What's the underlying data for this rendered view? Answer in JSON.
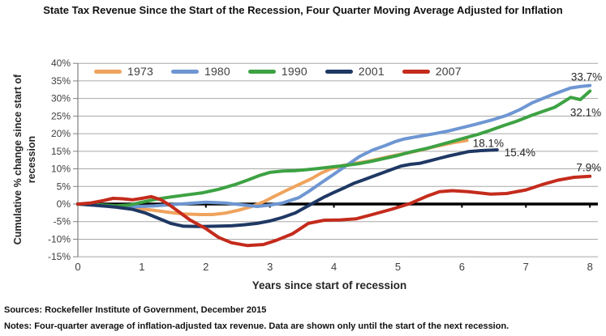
{
  "title": "State Tax Revenue Since the Start of the Recession, Four Quarter Moving Average Adjusted for Inflation",
  "chart_data": {
    "type": "line",
    "title": "State Tax Revenue Since the Start of the Recession, Four Quarter Moving Average Adjusted for Inflation",
    "xlabel": "Years since start of recession",
    "ylabel": "Cumulative % change since start of recession",
    "ylabel_lines": [
      "Cumulative % change since start of",
      "recession"
    ],
    "xlim": [
      0,
      8
    ],
    "ylim": [
      -15,
      40
    ],
    "x_ticks": [
      "0",
      "1",
      "2",
      "3",
      "4",
      "5",
      "6",
      "7",
      "8"
    ],
    "y_ticks": [
      "40%",
      "35%",
      "30%",
      "25%",
      "20%",
      "15%",
      "10%",
      "5%",
      "0%",
      "-5%",
      "-10%",
      "-15%"
    ],
    "y_tick_values": [
      40,
      35,
      30,
      25,
      20,
      15,
      10,
      5,
      0,
      -5,
      -10,
      -15
    ],
    "grid": true,
    "legend_position": "top",
    "zero_line": true,
    "series": [
      {
        "name": "1973",
        "color": "#EFA35D",
        "end_label": "18.1%",
        "points": [
          [
            0,
            0
          ],
          [
            0.3,
            -0.2
          ],
          [
            0.6,
            -0.7
          ],
          [
            0.9,
            -1.2
          ],
          [
            1.15,
            -1.7
          ],
          [
            1.4,
            -2.3
          ],
          [
            1.65,
            -2.8
          ],
          [
            1.9,
            -3.0
          ],
          [
            2.1,
            -3.0
          ],
          [
            2.3,
            -2.6
          ],
          [
            2.5,
            -1.8
          ],
          [
            2.7,
            -0.8
          ],
          [
            2.9,
            0.6
          ],
          [
            3.05,
            2.0
          ],
          [
            3.25,
            3.8
          ],
          [
            3.45,
            5.5
          ],
          [
            3.65,
            7.2
          ],
          [
            3.8,
            8.8
          ],
          [
            3.95,
            10.0
          ],
          [
            4.15,
            11.0
          ],
          [
            4.35,
            11.6
          ],
          [
            4.55,
            12.2
          ],
          [
            4.75,
            13.0
          ],
          [
            4.95,
            13.8
          ],
          [
            5.15,
            14.5
          ],
          [
            5.35,
            15.3
          ],
          [
            5.55,
            16.2
          ],
          [
            5.7,
            16.8
          ],
          [
            5.85,
            17.4
          ],
          [
            6.08,
            18.1
          ]
        ]
      },
      {
        "name": "1980",
        "color": "#6E96D2",
        "end_label": "33.7%",
        "points": [
          [
            0,
            0
          ],
          [
            0.4,
            -0.5
          ],
          [
            0.8,
            -0.8
          ],
          [
            1.2,
            -0.5
          ],
          [
            1.6,
            0.0
          ],
          [
            2.0,
            0.5
          ],
          [
            2.3,
            0.3
          ],
          [
            2.6,
            -0.3
          ],
          [
            2.8,
            -0.7
          ],
          [
            3.0,
            -0.3
          ],
          [
            3.2,
            0.3
          ],
          [
            3.45,
            1.8
          ],
          [
            3.6,
            3.5
          ],
          [
            3.8,
            6.0
          ],
          [
            4.0,
            8.5
          ],
          [
            4.2,
            11.0
          ],
          [
            4.4,
            13.5
          ],
          [
            4.6,
            15.3
          ],
          [
            4.8,
            16.6
          ],
          [
            4.95,
            17.7
          ],
          [
            5.1,
            18.5
          ],
          [
            5.35,
            19.3
          ],
          [
            5.6,
            20.1
          ],
          [
            5.8,
            20.8
          ],
          [
            6.0,
            21.7
          ],
          [
            6.2,
            22.6
          ],
          [
            6.45,
            23.8
          ],
          [
            6.7,
            25.2
          ],
          [
            6.9,
            26.8
          ],
          [
            7.1,
            28.8
          ],
          [
            7.4,
            31.0
          ],
          [
            7.7,
            33.0
          ],
          [
            7.85,
            33.4
          ],
          [
            8.0,
            33.7
          ]
        ]
      },
      {
        "name": "1990",
        "color": "#3DA243",
        "end_label": "32.1%",
        "points": [
          [
            0,
            0
          ],
          [
            0.3,
            -0.2
          ],
          [
            0.6,
            -0.5
          ],
          [
            0.8,
            -0.3
          ],
          [
            1.0,
            0.5
          ],
          [
            1.2,
            1.3
          ],
          [
            1.45,
            2.0
          ],
          [
            1.7,
            2.6
          ],
          [
            1.95,
            3.2
          ],
          [
            2.2,
            4.2
          ],
          [
            2.45,
            5.5
          ],
          [
            2.65,
            6.8
          ],
          [
            2.85,
            8.2
          ],
          [
            3.0,
            9.0
          ],
          [
            3.2,
            9.4
          ],
          [
            3.4,
            9.5
          ],
          [
            3.6,
            9.8
          ],
          [
            3.8,
            10.2
          ],
          [
            4.0,
            10.6
          ],
          [
            4.2,
            11.0
          ],
          [
            4.4,
            11.5
          ],
          [
            4.6,
            12.2
          ],
          [
            4.8,
            13.0
          ],
          [
            5.0,
            13.8
          ],
          [
            5.2,
            14.8
          ],
          [
            5.45,
            15.8
          ],
          [
            5.65,
            16.8
          ],
          [
            5.85,
            17.8
          ],
          [
            6.05,
            18.8
          ],
          [
            6.25,
            19.8
          ],
          [
            6.45,
            21.0
          ],
          [
            6.65,
            22.3
          ],
          [
            6.85,
            23.5
          ],
          [
            7.1,
            25.3
          ],
          [
            7.45,
            27.5
          ],
          [
            7.7,
            30.3
          ],
          [
            7.85,
            29.7
          ],
          [
            8.0,
            32.1
          ]
        ]
      },
      {
        "name": "2001",
        "color": "#1F3864",
        "end_label": "15.4%",
        "points": [
          [
            0,
            0
          ],
          [
            0.3,
            -0.4
          ],
          [
            0.6,
            -0.9
          ],
          [
            0.85,
            -1.5
          ],
          [
            1.05,
            -2.5
          ],
          [
            1.25,
            -4.0
          ],
          [
            1.45,
            -5.5
          ],
          [
            1.65,
            -6.3
          ],
          [
            1.9,
            -6.4
          ],
          [
            2.15,
            -6.3
          ],
          [
            2.4,
            -6.2
          ],
          [
            2.6,
            -5.9
          ],
          [
            2.8,
            -5.5
          ],
          [
            3.0,
            -4.8
          ],
          [
            3.2,
            -3.8
          ],
          [
            3.4,
            -2.5
          ],
          [
            3.55,
            -1.0
          ],
          [
            3.7,
            0.5
          ],
          [
            3.85,
            2.0
          ],
          [
            4.0,
            3.3
          ],
          [
            4.15,
            4.5
          ],
          [
            4.3,
            5.8
          ],
          [
            4.45,
            6.8
          ],
          [
            4.6,
            7.8
          ],
          [
            4.75,
            8.8
          ],
          [
            4.9,
            9.8
          ],
          [
            5.05,
            10.8
          ],
          [
            5.2,
            11.3
          ],
          [
            5.35,
            11.6
          ],
          [
            5.5,
            12.3
          ],
          [
            5.65,
            13.0
          ],
          [
            5.8,
            13.7
          ],
          [
            5.95,
            14.3
          ],
          [
            6.1,
            14.9
          ],
          [
            6.3,
            15.2
          ],
          [
            6.55,
            15.4
          ]
        ]
      },
      {
        "name": "2007",
        "color": "#C42B1C",
        "end_label": "7.9%",
        "points": [
          [
            0,
            0
          ],
          [
            0.2,
            0.3
          ],
          [
            0.4,
            1.0
          ],
          [
            0.55,
            1.6
          ],
          [
            0.7,
            1.5
          ],
          [
            0.85,
            1.2
          ],
          [
            1.0,
            1.6
          ],
          [
            1.15,
            2.1
          ],
          [
            1.3,
            1.2
          ],
          [
            1.45,
            -0.5
          ],
          [
            1.6,
            -2.5
          ],
          [
            1.75,
            -4.5
          ],
          [
            2.0,
            -7.0
          ],
          [
            2.2,
            -9.5
          ],
          [
            2.4,
            -11.0
          ],
          [
            2.65,
            -11.8
          ],
          [
            2.9,
            -11.5
          ],
          [
            3.1,
            -10.3
          ],
          [
            3.35,
            -8.5
          ],
          [
            3.6,
            -5.5
          ],
          [
            3.85,
            -4.6
          ],
          [
            4.1,
            -4.5
          ],
          [
            4.35,
            -4.2
          ],
          [
            4.6,
            -3.0
          ],
          [
            4.9,
            -1.5
          ],
          [
            5.2,
            0.2
          ],
          [
            5.45,
            2.2
          ],
          [
            5.65,
            3.5
          ],
          [
            5.85,
            3.8
          ],
          [
            6.1,
            3.5
          ],
          [
            6.45,
            2.8
          ],
          [
            6.7,
            3.0
          ],
          [
            7.0,
            4.0
          ],
          [
            7.25,
            5.5
          ],
          [
            7.5,
            6.8
          ],
          [
            7.75,
            7.6
          ],
          [
            8.0,
            7.9
          ]
        ]
      }
    ]
  },
  "footer": {
    "sources": "Sources: Rockefeller Institute of Government, December 2015",
    "notes": "Notes: Four-quarter average of inflation-adjusted tax revenue. Data are shown only until the start of the next recession."
  }
}
